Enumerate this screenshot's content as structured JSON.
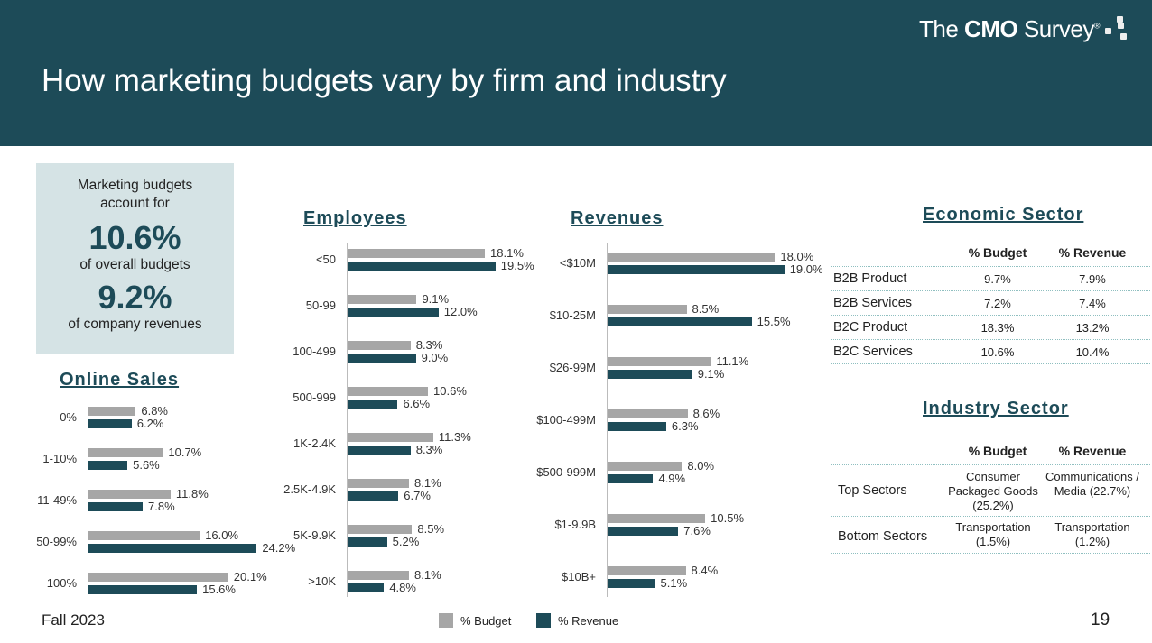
{
  "header": {
    "title": "How marketing budgets vary by firm and industry",
    "logo": {
      "pre": "The",
      "bold": "CMO",
      "post": "Survey",
      "mark": "®"
    }
  },
  "kpi": {
    "line1": "Marketing budgets account for",
    "value1": "10.6%",
    "line2": "of overall budgets",
    "value2": "9.2%",
    "line3": "of company revenues"
  },
  "colors": {
    "budget": "#a6a6a6",
    "revenue": "#1d4b58"
  },
  "chart_data": [
    {
      "type": "bar",
      "orientation": "horizontal",
      "title": "Online Sales",
      "categories": [
        "0%",
        "1-10%",
        "11-49%",
        "50-99%",
        "100%"
      ],
      "series": [
        {
          "name": "% Budget",
          "values": [
            6.8,
            10.7,
            11.8,
            16.0,
            20.1
          ]
        },
        {
          "name": "% Revenue",
          "values": [
            6.2,
            5.6,
            7.8,
            24.2,
            15.6
          ]
        }
      ],
      "value_format": "percent"
    },
    {
      "type": "bar",
      "orientation": "horizontal",
      "title": "Employees",
      "categories": [
        "<50",
        "50-99",
        "100-499",
        "500-999",
        "1K-2.4K",
        "2.5K-4.9K",
        "5K-9.9K",
        ">10K"
      ],
      "series": [
        {
          "name": "% Budget",
          "values": [
            18.1,
            9.1,
            8.3,
            10.6,
            11.3,
            8.1,
            8.5,
            8.1
          ]
        },
        {
          "name": "% Revenue",
          "values": [
            19.5,
            12.0,
            9.0,
            6.6,
            8.3,
            6.7,
            5.2,
            4.8
          ]
        }
      ],
      "value_format": "percent"
    },
    {
      "type": "bar",
      "orientation": "horizontal",
      "title": "Revenues",
      "categories": [
        "<$10M",
        "$10-25M",
        "$26-99M",
        "$100-499M",
        "$500-999M",
        "$1-9.9B",
        "$10B+"
      ],
      "series": [
        {
          "name": "% Budget",
          "values": [
            18.0,
            8.5,
            11.1,
            8.6,
            8.0,
            10.5,
            8.4
          ]
        },
        {
          "name": "% Revenue",
          "values": [
            19.0,
            15.5,
            9.1,
            6.3,
            4.9,
            7.6,
            5.1
          ]
        }
      ],
      "value_format": "percent"
    }
  ],
  "economic": {
    "title": "Economic Sector",
    "headers": [
      "% Budget",
      "% Revenue"
    ],
    "rows": [
      [
        "B2B Product",
        "9.7%",
        "7.9%"
      ],
      [
        "B2B Services",
        "7.2%",
        "7.4%"
      ],
      [
        "B2C Product",
        "18.3%",
        "13.2%"
      ],
      [
        "B2C Services",
        "10.6%",
        "10.4%"
      ]
    ]
  },
  "industry": {
    "title": "Industry Sector",
    "headers": [
      "% Budget",
      "% Revenue"
    ],
    "rows": [
      [
        "Top Sectors",
        "Consumer Packaged Goods (25.2%)",
        "Communications / Media (22.7%)"
      ],
      [
        "Bottom Sectors",
        "Transportation (1.5%)",
        "Transportation (1.2%)"
      ]
    ]
  },
  "legend": {
    "budget": "% Budget",
    "revenue": "% Revenue"
  },
  "footer": {
    "date": "Fall 2023",
    "page": "19"
  }
}
